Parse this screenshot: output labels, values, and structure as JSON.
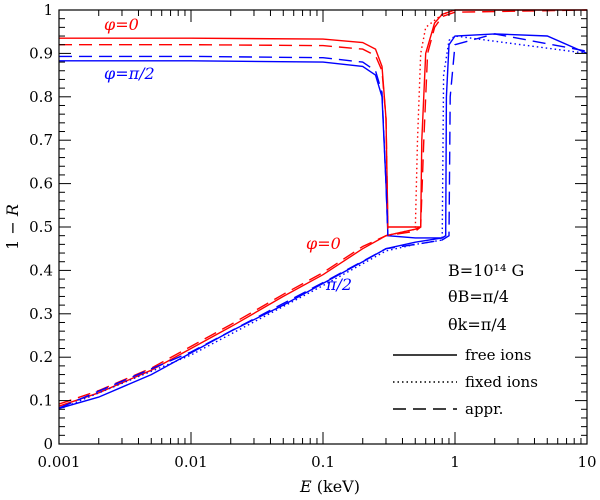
{
  "chart_data": {
    "type": "line",
    "xscale": "log",
    "xlim": [
      0.001,
      10
    ],
    "ylim": [
      0,
      1
    ],
    "xlabel": "E (keV)",
    "ylabel": "1 − R",
    "xticks": [
      {
        "v": 0.001,
        "label": "0.001"
      },
      {
        "v": 0.01,
        "label": "0.01"
      },
      {
        "v": 0.1,
        "label": "0.1"
      },
      {
        "v": 1,
        "label": "1"
      },
      {
        "v": 10,
        "label": "10"
      }
    ],
    "yticks": [
      {
        "v": 0,
        "label": "0"
      },
      {
        "v": 0.1,
        "label": "0.1"
      },
      {
        "v": 0.2,
        "label": "0.2"
      },
      {
        "v": 0.3,
        "label": "0.3"
      },
      {
        "v": 0.4,
        "label": "0.4"
      },
      {
        "v": 0.5,
        "label": "0.5"
      },
      {
        "v": 0.6,
        "label": "0.6"
      },
      {
        "v": 0.7,
        "label": "0.7"
      },
      {
        "v": 0.8,
        "label": "0.8"
      },
      {
        "v": 0.9,
        "label": "0.9"
      },
      {
        "v": 1,
        "label": "1"
      }
    ],
    "annotations": {
      "phi0_upper": "φ=0",
      "phipi2_upper": "φ=π/2",
      "phi0_lower": "φ=0",
      "pi2_lower": "π/2",
      "params": [
        "B=10¹⁴ G",
        "θB=π/4",
        "θk=π/4"
      ]
    },
    "legend": [
      {
        "label": "free ions",
        "style": "solid"
      },
      {
        "label": "fixed ions",
        "style": "dotted"
      },
      {
        "label": "appr.",
        "style": "dashed"
      }
    ],
    "colors": {
      "phi0": "#ff0000",
      "phipi2": "#0000ff"
    },
    "series": [
      {
        "name": "free ions, φ=0",
        "color": "#ff0000",
        "style": "solid",
        "points": [
          [
            0.001,
            0.087
          ],
          [
            0.002,
            0.118
          ],
          [
            0.005,
            0.17
          ],
          [
            0.01,
            0.22
          ],
          [
            0.02,
            0.27
          ],
          [
            0.05,
            0.34
          ],
          [
            0.1,
            0.39
          ],
          [
            0.2,
            0.45
          ],
          [
            0.3,
            0.48
          ],
          [
            0.5,
            0.495
          ],
          [
            0.55,
            0.5
          ],
          [
            0.56,
            0.7
          ],
          [
            0.6,
            0.9
          ],
          [
            0.7,
            0.97
          ],
          [
            0.8,
            0.99
          ],
          [
            1,
            1.0
          ],
          [
            2,
            1.0
          ],
          [
            10,
            1.0
          ]
        ]
      },
      {
        "name": "free ions, φ=0 (upper)",
        "color": "#ff0000",
        "style": "solid",
        "points": [
          [
            0.001,
            0.935
          ],
          [
            0.01,
            0.935
          ],
          [
            0.1,
            0.933
          ],
          [
            0.2,
            0.925
          ],
          [
            0.25,
            0.91
          ],
          [
            0.28,
            0.87
          ],
          [
            0.3,
            0.75
          ],
          [
            0.31,
            0.5
          ],
          [
            0.5,
            0.5
          ],
          [
            0.55,
            0.5
          ]
        ]
      },
      {
        "name": "free ions, φ=π/2",
        "color": "#0000ff",
        "style": "solid",
        "points": [
          [
            0.001,
            0.082
          ],
          [
            0.002,
            0.108
          ],
          [
            0.005,
            0.16
          ],
          [
            0.01,
            0.21
          ],
          [
            0.02,
            0.26
          ],
          [
            0.05,
            0.32
          ],
          [
            0.1,
            0.37
          ],
          [
            0.2,
            0.42
          ],
          [
            0.3,
            0.45
          ],
          [
            0.5,
            0.465
          ],
          [
            0.8,
            0.475
          ],
          [
            0.85,
            0.48
          ],
          [
            0.86,
            0.8
          ],
          [
            0.9,
            0.92
          ],
          [
            1,
            0.94
          ],
          [
            2,
            0.945
          ],
          [
            5,
            0.94
          ],
          [
            10,
            0.9
          ]
        ]
      },
      {
        "name": "free ions, φ=π/2 (upper)",
        "color": "#0000ff",
        "style": "solid",
        "points": [
          [
            0.001,
            0.883
          ],
          [
            0.01,
            0.883
          ],
          [
            0.1,
            0.88
          ],
          [
            0.2,
            0.87
          ],
          [
            0.25,
            0.85
          ],
          [
            0.28,
            0.8
          ],
          [
            0.3,
            0.6
          ],
          [
            0.31,
            0.48
          ],
          [
            0.5,
            0.475
          ],
          [
            0.8,
            0.475
          ]
        ]
      },
      {
        "name": "fixed ions, φ=0",
        "color": "#ff0000",
        "style": "dotted",
        "points": [
          [
            0.3,
            0.48
          ],
          [
            0.5,
            0.495
          ],
          [
            0.52,
            0.7
          ],
          [
            0.55,
            0.9
          ],
          [
            0.6,
            0.96
          ],
          [
            0.8,
            0.99
          ],
          [
            1,
            1.0
          ]
        ]
      },
      {
        "name": "fixed ions, φ=π/2",
        "color": "#0000ff",
        "style": "dotted",
        "points": [
          [
            0.001,
            0.08
          ],
          [
            0.01,
            0.205
          ],
          [
            0.1,
            0.365
          ],
          [
            0.3,
            0.445
          ],
          [
            0.5,
            0.46
          ],
          [
            0.8,
            0.47
          ],
          [
            0.82,
            0.85
          ],
          [
            0.9,
            0.93
          ],
          [
            1,
            0.94
          ],
          [
            10,
            0.9
          ]
        ]
      },
      {
        "name": "appr., φ=0",
        "color": "#ff0000",
        "style": "dashed",
        "points": [
          [
            0.001,
            0.092
          ],
          [
            0.002,
            0.123
          ],
          [
            0.005,
            0.175
          ],
          [
            0.01,
            0.225
          ],
          [
            0.02,
            0.275
          ],
          [
            0.05,
            0.345
          ],
          [
            0.1,
            0.395
          ],
          [
            0.2,
            0.455
          ],
          [
            0.3,
            0.48
          ],
          [
            0.5,
            0.49
          ],
          [
            0.55,
            0.5
          ],
          [
            0.58,
            0.7
          ],
          [
            0.62,
            0.9
          ],
          [
            0.7,
            0.96
          ],
          [
            0.8,
            0.985
          ],
          [
            1,
            0.995
          ],
          [
            10,
            1.0
          ]
        ]
      },
      {
        "name": "appr., φ=0 (upper)",
        "color": "#ff0000",
        "style": "dashed",
        "points": [
          [
            0.001,
            0.92
          ],
          [
            0.01,
            0.92
          ],
          [
            0.1,
            0.918
          ],
          [
            0.2,
            0.91
          ],
          [
            0.25,
            0.895
          ],
          [
            0.28,
            0.86
          ],
          [
            0.3,
            0.75
          ],
          [
            0.31,
            0.49
          ]
        ]
      },
      {
        "name": "appr., φ=π/2",
        "color": "#0000ff",
        "style": "dashed",
        "points": [
          [
            0.001,
            0.083
          ],
          [
            0.01,
            0.212
          ],
          [
            0.1,
            0.372
          ],
          [
            0.3,
            0.45
          ],
          [
            0.5,
            0.46
          ],
          [
            0.8,
            0.47
          ],
          [
            0.9,
            0.48
          ],
          [
            0.92,
            0.8
          ],
          [
            1,
            0.92
          ],
          [
            2,
            0.945
          ],
          [
            10,
            0.905
          ]
        ]
      },
      {
        "name": "appr., φ=π/2 (upper)",
        "color": "#0000ff",
        "style": "dashed",
        "points": [
          [
            0.001,
            0.893
          ],
          [
            0.01,
            0.893
          ],
          [
            0.1,
            0.89
          ],
          [
            0.2,
            0.88
          ],
          [
            0.25,
            0.86
          ],
          [
            0.28,
            0.81
          ],
          [
            0.3,
            0.6
          ],
          [
            0.31,
            0.48
          ]
        ]
      }
    ]
  }
}
